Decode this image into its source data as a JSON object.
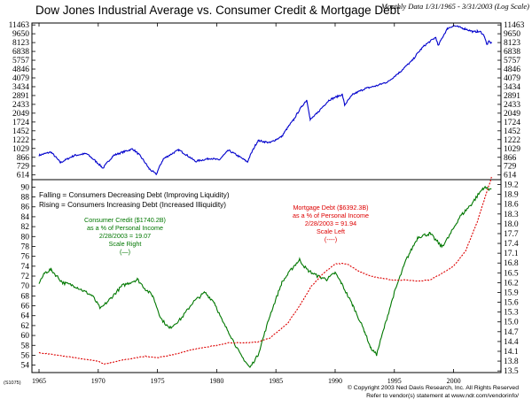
{
  "chart_data": {
    "title": "Dow Jones Industrial Average vs. Consumer Credit & Mortgage Debt",
    "subtitle": "Monthly Data 1/31/1965 - 3/31/2003 (Log Scale)",
    "colors": {
      "dow": "#0000cc",
      "credit": "#007700",
      "mortgage": "#dd0000",
      "frame": "#000000"
    },
    "x_ticks": [
      "1965",
      "1970",
      "1975",
      "1980",
      "1985",
      "1990",
      "1995",
      "2000"
    ],
    "top_panel": {
      "type": "line",
      "scale": "log",
      "ylim": [
        560,
        11900
      ],
      "y_ticks": [
        614,
        729,
        866,
        1029,
        1222,
        1452,
        1724,
        2049,
        2433,
        2891,
        3434,
        4079,
        4846,
        5757,
        6838,
        8123,
        9650,
        11463
      ],
      "series": [
        {
          "name": "Dow Jones Industrial Average",
          "x": [
            1965.0,
            1966.0,
            1966.8,
            1968.0,
            1969.0,
            1970.4,
            1971.3,
            1972.9,
            1973.5,
            1974.3,
            1974.9,
            1975.5,
            1976.8,
            1977.5,
            1978.2,
            1979.5,
            1980.2,
            1981.0,
            1982.6,
            1983.5,
            1984.5,
            1985.5,
            1986.5,
            1987.6,
            1987.9,
            1988.5,
            1989.5,
            1990.6,
            1990.8,
            1991.5,
            1992.5,
            1993.5,
            1994.5,
            1995.5,
            1996.5,
            1997.5,
            1998.5,
            1998.7,
            1999.5,
            2000.0,
            2001.0,
            2001.7,
            2002.0,
            2002.3,
            2002.6,
            2002.8,
            2003.0,
            2003.2
          ],
          "values": [
            900,
            960,
            780,
            900,
            930,
            700,
            900,
            1020,
            900,
            690,
            620,
            840,
            1000,
            900,
            800,
            850,
            820,
            990,
            790,
            1200,
            1150,
            1300,
            1800,
            2650,
            1800,
            2050,
            2650,
            2950,
            2400,
            2950,
            3300,
            3500,
            3800,
            4600,
            5700,
            7600,
            9000,
            7600,
            10700,
            11300,
            10600,
            10000,
            10100,
            10000,
            9200,
            7800,
            8300,
            8000
          ]
        }
      ]
    },
    "bottom_panel": {
      "type": "line",
      "left_axis": {
        "ylim": [
          52.5,
          91.5
        ],
        "ticks": [
          54,
          56,
          58,
          60,
          62,
          64,
          66,
          68,
          70,
          72,
          74,
          76,
          78,
          80,
          82,
          84,
          86,
          88,
          90
        ]
      },
      "right_axis": {
        "ylim": [
          13.45,
          19.35
        ],
        "ticks": [
          13.5,
          13.8,
          14.1,
          14.4,
          14.7,
          15.0,
          15.3,
          15.6,
          15.9,
          16.2,
          16.5,
          16.8,
          17.1,
          17.4,
          17.7,
          18.0,
          18.3,
          18.6,
          18.9,
          19.2
        ]
      },
      "series": [
        {
          "name": "Consumer Credit",
          "axis": "right",
          "x": [
            1965.0,
            1965.5,
            1966.0,
            1967.0,
            1968.0,
            1969.0,
            1969.5,
            1970.2,
            1971.0,
            1972.0,
            1973.3,
            1974.0,
            1974.6,
            1975.3,
            1976.0,
            1977.0,
            1978.0,
            1979.0,
            1979.8,
            1980.5,
            1981.0,
            1982.0,
            1982.8,
            1983.5,
            1984.5,
            1985.5,
            1986.5,
            1987.0,
            1987.6,
            1988.5,
            1989.3,
            1990.0,
            1990.5,
            1991.5,
            1992.5,
            1993.0,
            1993.5,
            1994.2,
            1995.0,
            1996.0,
            1997.0,
            1998.0,
            1999.0,
            1999.6,
            2000.5,
            2001.5,
            2002.5,
            2003.2
          ],
          "values": [
            16.2,
            16.5,
            16.6,
            16.2,
            16.1,
            15.9,
            15.8,
            15.4,
            15.7,
            16.1,
            16.3,
            16.0,
            15.8,
            15.1,
            14.8,
            15.1,
            15.6,
            15.9,
            15.6,
            15.0,
            14.7,
            14.0,
            13.6,
            14.0,
            15.2,
            16.2,
            16.7,
            16.9,
            16.6,
            16.4,
            16.3,
            16.5,
            16.2,
            15.5,
            14.7,
            14.2,
            14.0,
            14.9,
            15.9,
            16.9,
            17.6,
            17.7,
            17.3,
            17.6,
            18.2,
            18.6,
            19.1,
            19.07
          ]
        },
        {
          "name": "Mortgage Debt",
          "axis": "left",
          "x": [
            1965.0,
            1966.0,
            1968.0,
            1970.0,
            1970.5,
            1972.0,
            1974.0,
            1975.0,
            1976.5,
            1978.0,
            1980.0,
            1981.0,
            1982.5,
            1983.5,
            1984.5,
            1986.0,
            1987.0,
            1988.0,
            1989.0,
            1990.0,
            1991.0,
            1992.0,
            1993.0,
            1994.0,
            1995.0,
            1996.0,
            1997.0,
            1998.0,
            1999.0,
            2000.0,
            2001.0,
            2002.0,
            2003.2
          ],
          "values": [
            56.5,
            56.2,
            55.5,
            54.8,
            54.2,
            55.0,
            55.8,
            55.5,
            56.2,
            57.2,
            58.0,
            58.5,
            58.5,
            58.7,
            59.5,
            62.5,
            66.0,
            70.0,
            72.5,
            74.5,
            74.5,
            73.0,
            72.0,
            71.5,
            71.2,
            71.2,
            71.0,
            71.2,
            72.5,
            74.0,
            77.0,
            83.0,
            91.94
          ]
        }
      ]
    },
    "annotations": {
      "falling": "Falling = Consumers Decreasing Debt (Improving Liquidity)",
      "rising": "Rising = Consumers Increasing Debt (Increased Illiquidity)",
      "credit_label": [
        "Consumer Credit ($1740.2B)",
        "as a % of Personal Income",
        "2/28/2003 = 19.07",
        "Scale Right",
        "(—)"
      ],
      "mortgage_label": [
        "Mortgage Debt ($6392.3B)",
        "as a % of Personal Income",
        "2/28/2003 = 91.94",
        "Scale Left",
        "(----)"
      ]
    },
    "footer": {
      "code": "(S1075)",
      "copyright": "© Copyright 2003 Ned Davis Research, Inc. All Rights Reserved",
      "refer": "Refer to vendor(s) statement at www.ndr.com/vendorinfo/"
    }
  }
}
